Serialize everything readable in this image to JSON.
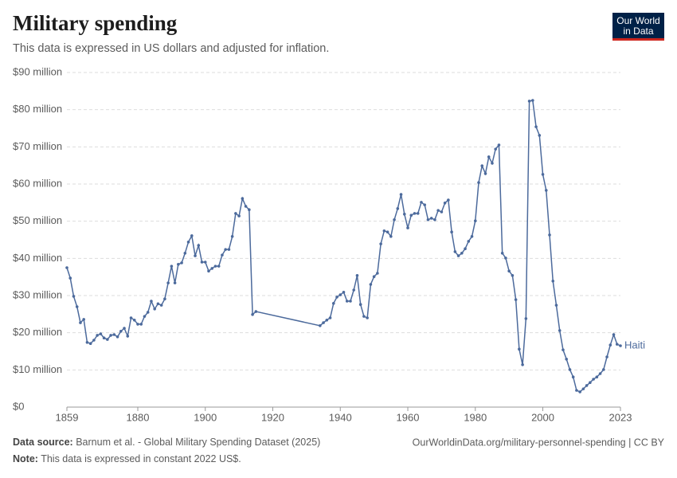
{
  "logo": [
    "Our World",
    "in Data"
  ],
  "chart_data": {
    "type": "line",
    "title": "Military spending",
    "subtitle": "This data is expressed in US dollars and adjusted for inflation.",
    "source_label": "Data source:",
    "source": "Barnum et al. - Global Military Spending Dataset (2025)",
    "url": "OurWorldinData.org/military-personnel-spending | CC BY",
    "note_label": "Note:",
    "note": "This data is expressed in constant 2022 US$.",
    "grid": true,
    "xlim": [
      1859,
      2023
    ],
    "xticks": [
      1859,
      1880,
      1900,
      1920,
      1940,
      1960,
      1980,
      2000,
      2023
    ],
    "ylim": [
      0,
      90000000.0
    ],
    "yticks": [
      {
        "value": 0,
        "label": "$0"
      },
      {
        "value": 10000000.0,
        "label": "$10 million"
      },
      {
        "value": 20000000.0,
        "label": "$20 million"
      },
      {
        "value": 30000000.0,
        "label": "$30 million"
      },
      {
        "value": 40000000.0,
        "label": "$40 million"
      },
      {
        "value": 50000000.0,
        "label": "$50 million"
      },
      {
        "value": 60000000.0,
        "label": "$60 million"
      },
      {
        "value": 70000000.0,
        "label": "$70 million"
      },
      {
        "value": 80000000.0,
        "label": "$80 million"
      },
      {
        "value": 90000000.0,
        "label": "$90 million"
      }
    ],
    "x": [
      1859,
      1860,
      1861,
      1862,
      1863,
      1864,
      1865,
      1866,
      1867,
      1868,
      1869,
      1870,
      1871,
      1872,
      1873,
      1874,
      1875,
      1876,
      1877,
      1878,
      1879,
      1880,
      1881,
      1882,
      1883,
      1884,
      1885,
      1886,
      1887,
      1888,
      1889,
      1890,
      1891,
      1892,
      1893,
      1894,
      1895,
      1896,
      1897,
      1898,
      1899,
      1900,
      1901,
      1902,
      1903,
      1904,
      1905,
      1906,
      1907,
      1908,
      1909,
      1910,
      1911,
      1912,
      1913,
      1914,
      1915,
      1934,
      1935,
      1936,
      1937,
      1938,
      1939,
      1940,
      1941,
      1942,
      1943,
      1944,
      1945,
      1946,
      1947,
      1948,
      1949,
      1950,
      1951,
      1952,
      1953,
      1954,
      1955,
      1956,
      1957,
      1958,
      1959,
      1960,
      1961,
      1962,
      1963,
      1964,
      1965,
      1966,
      1967,
      1968,
      1969,
      1970,
      1971,
      1972,
      1973,
      1974,
      1975,
      1976,
      1977,
      1978,
      1979,
      1980,
      1981,
      1982,
      1983,
      1984,
      1985,
      1986,
      1987,
      1988,
      1989,
      1990,
      1991,
      1992,
      1993,
      1994,
      1995,
      1996,
      1997,
      1998,
      1999,
      2000,
      2001,
      2002,
      2003,
      2004,
      2005,
      2006,
      2007,
      2008,
      2009,
      2010,
      2011,
      2012,
      2013,
      2014,
      2015,
      2016,
      2017,
      2018,
      2019,
      2020,
      2021,
      2022,
      2023
    ],
    "series": [
      {
        "name": "Haiti",
        "color": "#4c6a9c",
        "values": [
          37500000.0,
          34700000.0,
          29800000.0,
          27000000.0,
          22700000.0,
          23600000.0,
          17400000.0,
          17100000.0,
          18000000.0,
          19300000.0,
          19700000.0,
          18600000.0,
          18200000.0,
          19300000.0,
          19500000.0,
          18900000.0,
          20400000.0,
          21200000.0,
          19100000.0,
          24000000.0,
          23400000.0,
          22300000.0,
          22300000.0,
          24400000.0,
          25500000.0,
          28500000.0,
          26400000.0,
          27800000.0,
          27400000.0,
          29100000.0,
          33400000.0,
          37900000.0,
          33400000.0,
          38400000.0,
          38800000.0,
          41400000.0,
          44400000.0,
          46100000.0,
          40700000.0,
          43500000.0,
          39000000.0,
          39000000.0,
          36600000.0,
          37300000.0,
          37900000.0,
          37900000.0,
          40900000.0,
          42400000.0,
          42400000.0,
          45900000.0,
          52100000.0,
          51400000.0,
          56100000.0,
          54000000.0,
          53100000.0,
          24900000.0,
          25700000.0,
          21900000.0,
          22700000.0,
          23400000.0,
          24000000.0,
          27900000.0,
          29600000.0,
          30200000.0,
          30900000.0,
          28500000.0,
          28500000.0,
          31500000.0,
          35400000.0,
          27600000.0,
          24400000.0,
          24000000.0,
          33000000.0,
          35100000.0,
          36000000.0,
          43900000.0,
          47400000.0,
          47100000.0,
          45900000.0,
          50400000.0,
          53400000.0,
          57200000.0,
          51900000.0,
          48200000.0,
          51600000.0,
          52100000.0,
          52100000.0,
          55100000.0,
          54400000.0,
          50400000.0,
          50800000.0,
          50400000.0,
          52900000.0,
          52500000.0,
          54900000.0,
          55700000.0,
          47100000.0,
          41800000.0,
          40700000.0,
          41400000.0,
          42600000.0,
          44600000.0,
          45900000.0,
          50100000.0,
          60400000.0,
          64900000.0,
          62800000.0,
          67300000.0,
          65600000.0,
          69400000.0,
          70500000.0,
          41400000.0,
          40100000.0,
          36600000.0,
          35400000.0,
          28900000.0,
          15600000.0,
          11400000.0,
          23800000.0,
          82300000.0,
          82500000.0,
          75400000.0,
          73100000.0,
          62600000.0,
          58300000.0,
          46300000.0,
          33900000.0,
          27400000.0,
          20600000.0,
          15400000.0,
          12900000.0,
          10100000.0,
          8100000.0,
          4500000.0,
          4100000.0,
          4900000.0,
          5800000.0,
          6600000.0,
          7500000.0,
          8100000.0,
          9000000.0,
          10100000.0,
          13500000.0,
          16700000.0,
          19500000.0,
          16900000.0,
          16500000.0
        ]
      }
    ]
  }
}
